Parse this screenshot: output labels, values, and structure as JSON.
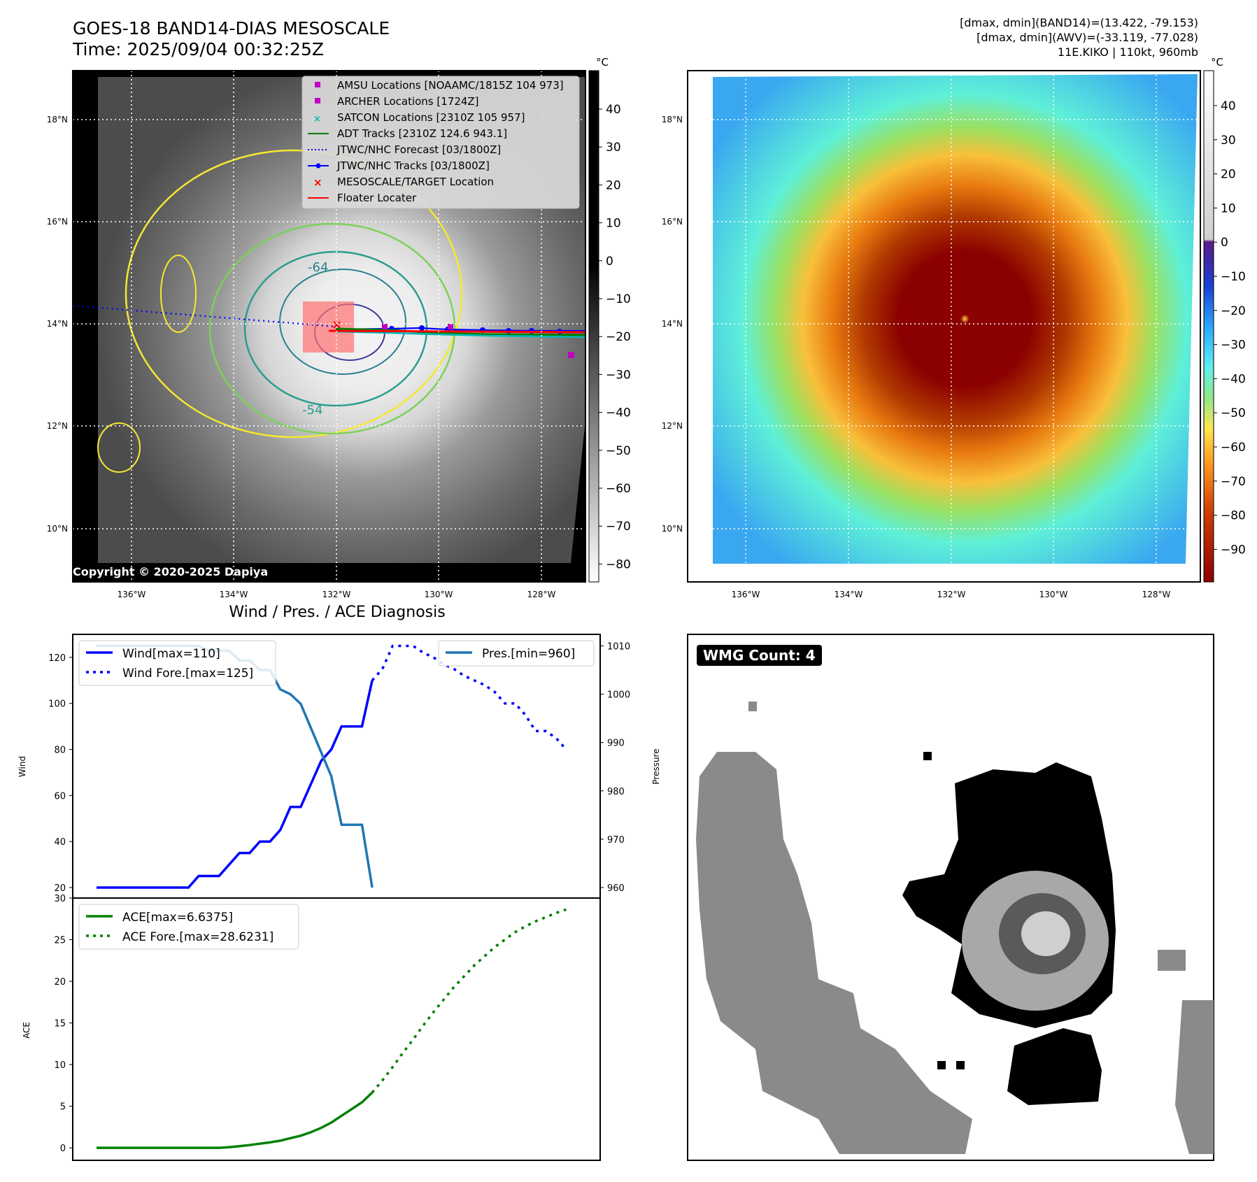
{
  "header": {
    "title_line1": "GOES-18 BAND14-DIAS MESOSCALE",
    "title_line2": "Time: 2025/09/04 00:32:25Z",
    "stats_line1": "[dmax, dmin](BAND14)=(13.422, -79.153)",
    "stats_line2": "[dmax, dmin](AWV)=(-33.119, -77.028)",
    "stats_line3": "11E.KIKO | 110kt, 960mb"
  },
  "map": {
    "lat_ticks": [
      "18°N",
      "16°N",
      "14°N",
      "12°N",
      "10°N"
    ],
    "lon_ticks": [
      "136°W",
      "134°W",
      "132°W",
      "130°W",
      "128°W"
    ],
    "copyright": "Copyright © 2020-2025 Dapiya",
    "contour_labels": [
      "-64",
      "-54"
    ],
    "colorbar_unit": "°C",
    "left_colorbar_ticks": [
      "40",
      "30",
      "20",
      "10",
      "0",
      "−10",
      "−20",
      "−30",
      "−40",
      "−50",
      "−60",
      "−70",
      "−80"
    ],
    "right_colorbar_ticks": [
      "40",
      "30",
      "20",
      "10",
      "0",
      "−10",
      "−20",
      "−30",
      "−40",
      "−50",
      "−60",
      "−70",
      "−80",
      "−90"
    ],
    "legend": [
      {
        "label": "AMSU Locations [NOAAMC/1815Z 104 973]",
        "color": "#c000c0",
        "marker": "square"
      },
      {
        "label": "ARCHER Locations [1724Z]",
        "color": "#c000c0",
        "marker": "square"
      },
      {
        "label": "SATCON Locations [2310Z 105 957]",
        "color": "#00b8b8",
        "marker": "x"
      },
      {
        "label": "ADT Tracks [2310Z 124.6 943.1]",
        "color": "#008000",
        "marker": "line"
      },
      {
        "label": "JTWC/NHC Forecast [03/1800Z]",
        "color": "#0000ff",
        "marker": "dotted"
      },
      {
        "label": "JTWC/NHC Tracks [03/1800Z]",
        "color": "#0000ff",
        "marker": "dotline"
      },
      {
        "label": "MESOSCALE/TARGET Location",
        "color": "#ff0000",
        "marker": "x"
      },
      {
        "label": "Floater Locater",
        "color": "#ff0000",
        "marker": "line"
      }
    ]
  },
  "wmg": {
    "badge": "WMG Count: 4"
  },
  "chart_title": "Wind / Pres. / ACE Diagnosis",
  "chart_data": [
    {
      "type": "line",
      "title": "Wind / Pres. / ACE Diagnosis",
      "xlabel": "",
      "ylabel": "Wind",
      "ylabel_right": "Pressure",
      "ylim": [
        20,
        130
      ],
      "ylim_right": [
        960,
        1010
      ],
      "yticks": [
        20,
        40,
        60,
        80,
        100,
        120
      ],
      "yticks_right": [
        960,
        970,
        980,
        990,
        1000,
        1010
      ],
      "xlim": [
        0,
        47
      ],
      "series": [
        {
          "name": "Wind[max=110]",
          "color": "#0000ff",
          "style": "solid",
          "axis": "left",
          "x": [
            0,
            1,
            2,
            3,
            4,
            5,
            6,
            7,
            8,
            9,
            10,
            11,
            12,
            13,
            14,
            15,
            16,
            17,
            18,
            19,
            20,
            21,
            22,
            23,
            24,
            25,
            26,
            27
          ],
          "values": [
            20,
            20,
            20,
            20,
            20,
            20,
            20,
            20,
            20,
            20,
            25,
            25,
            25,
            30,
            35,
            35,
            40,
            40,
            45,
            55,
            55,
            65,
            75,
            80,
            90,
            90,
            90,
            110
          ]
        },
        {
          "name": "Wind Fore.[max=125]",
          "color": "#0000ff",
          "style": "dotted",
          "axis": "left",
          "x": [
            27,
            28,
            29,
            30,
            31,
            32,
            33,
            34,
            35,
            36,
            37,
            38,
            39,
            40,
            41,
            42,
            43,
            44,
            45,
            46
          ],
          "values": [
            110,
            115,
            125,
            125,
            125,
            122,
            120,
            117,
            115,
            112,
            110,
            108,
            105,
            100,
            100,
            95,
            88,
            88,
            85,
            80
          ]
        },
        {
          "name": "Pres.[min=960]",
          "color": "#1f77b4",
          "style": "solid",
          "axis": "right",
          "x": [
            0,
            1,
            2,
            3,
            4,
            5,
            6,
            7,
            8,
            9,
            10,
            11,
            12,
            13,
            14,
            15,
            16,
            17,
            18,
            19,
            20,
            21,
            22,
            23,
            24,
            25,
            26,
            27
          ],
          "values": [
            1010,
            1010,
            1010,
            1010,
            1010,
            1010,
            1010,
            1010,
            1010,
            1010,
            1010,
            1009,
            1009,
            1009,
            1007,
            1007,
            1005,
            1005,
            1001,
            1000,
            998,
            993,
            988,
            983,
            973,
            973,
            973,
            960
          ]
        }
      ]
    },
    {
      "type": "line",
      "xlabel": "",
      "ylabel": "ACE",
      "ylim": [
        -1.5,
        30
      ],
      "yticks": [
        0,
        5,
        10,
        15,
        20,
        25,
        30
      ],
      "xlim": [
        0,
        47
      ],
      "series": [
        {
          "name": "ACE[max=6.6375]",
          "color": "#008000",
          "style": "solid",
          "x": [
            0,
            1,
            2,
            3,
            4,
            5,
            6,
            7,
            8,
            9,
            10,
            11,
            12,
            13,
            14,
            15,
            16,
            17,
            18,
            19,
            20,
            21,
            22,
            23,
            24,
            25,
            26,
            27
          ],
          "values": [
            0,
            0,
            0,
            0,
            0,
            0,
            0,
            0,
            0,
            0,
            0,
            0,
            0,
            0.08,
            0.2,
            0.33,
            0.5,
            0.66,
            0.86,
            1.16,
            1.46,
            1.88,
            2.4,
            3.04,
            3.85,
            4.66,
            5.47,
            6.6375
          ]
        },
        {
          "name": "ACE Fore.[max=28.6231]",
          "color": "#008000",
          "style": "dotted",
          "x": [
            27,
            28,
            29,
            30,
            31,
            32,
            33,
            34,
            35,
            36,
            37,
            38,
            39,
            40,
            41,
            42,
            43,
            44,
            45,
            46
          ],
          "values": [
            6.6375,
            8.1,
            9.7,
            11.4,
            13.0,
            14.7,
            16.3,
            17.8,
            19.3,
            20.6,
            21.9,
            23.0,
            24.1,
            25.0,
            25.9,
            26.6,
            27.2,
            27.7,
            28.2,
            28.6231
          ]
        }
      ]
    }
  ]
}
